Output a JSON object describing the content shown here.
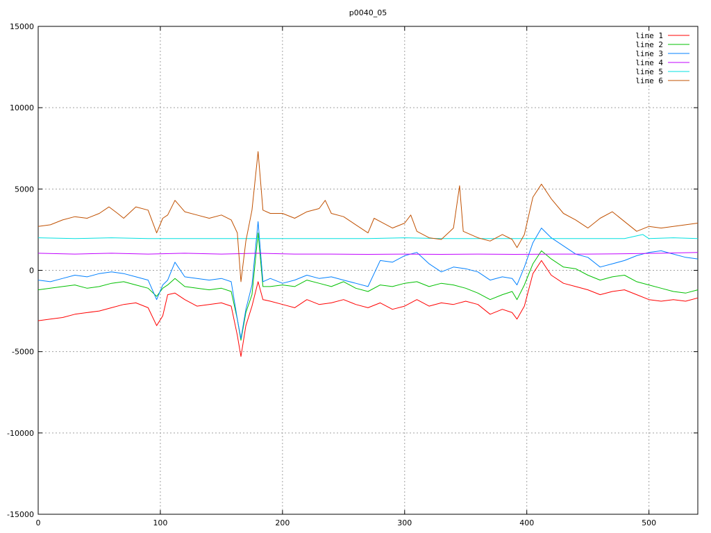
{
  "chart_data": {
    "type": "line",
    "title": "p0040_05",
    "xlabel": "",
    "ylabel": "",
    "xlim": [
      0,
      540
    ],
    "ylim": [
      -15000,
      15000
    ],
    "xticks": [
      0,
      100,
      200,
      300,
      400,
      500
    ],
    "yticks": [
      -15000,
      -10000,
      -5000,
      0,
      5000,
      10000,
      15000
    ],
    "grid": true,
    "legend_position": "top-right",
    "series": [
      {
        "name": "line 1",
        "color": "#ff0000",
        "points": [
          [
            0,
            -3100
          ],
          [
            10,
            -3000
          ],
          [
            20,
            -2900
          ],
          [
            30,
            -2700
          ],
          [
            40,
            -2600
          ],
          [
            50,
            -2500
          ],
          [
            60,
            -2300
          ],
          [
            70,
            -2100
          ],
          [
            80,
            -2000
          ],
          [
            90,
            -2300
          ],
          [
            97,
            -3400
          ],
          [
            102,
            -2800
          ],
          [
            106,
            -1500
          ],
          [
            112,
            -1400
          ],
          [
            120,
            -1800
          ],
          [
            130,
            -2200
          ],
          [
            140,
            -2100
          ],
          [
            150,
            -2000
          ],
          [
            158,
            -2200
          ],
          [
            163,
            -4000
          ],
          [
            166,
            -5300
          ],
          [
            170,
            -3400
          ],
          [
            175,
            -2200
          ],
          [
            180,
            -700
          ],
          [
            184,
            -1800
          ],
          [
            190,
            -1900
          ],
          [
            200,
            -2100
          ],
          [
            210,
            -2300
          ],
          [
            220,
            -1800
          ],
          [
            230,
            -2100
          ],
          [
            240,
            -2000
          ],
          [
            250,
            -1800
          ],
          [
            260,
            -2100
          ],
          [
            270,
            -2300
          ],
          [
            280,
            -2000
          ],
          [
            290,
            -2400
          ],
          [
            300,
            -2200
          ],
          [
            310,
            -1800
          ],
          [
            320,
            -2200
          ],
          [
            330,
            -2000
          ],
          [
            340,
            -2100
          ],
          [
            350,
            -1900
          ],
          [
            360,
            -2100
          ],
          [
            370,
            -2700
          ],
          [
            380,
            -2400
          ],
          [
            388,
            -2600
          ],
          [
            392,
            -3000
          ],
          [
            398,
            -2200
          ],
          [
            405,
            -200
          ],
          [
            412,
            600
          ],
          [
            420,
            -300
          ],
          [
            430,
            -800
          ],
          [
            440,
            -1000
          ],
          [
            450,
            -1200
          ],
          [
            460,
            -1500
          ],
          [
            470,
            -1300
          ],
          [
            480,
            -1200
          ],
          [
            490,
            -1500
          ],
          [
            500,
            -1800
          ],
          [
            510,
            -1900
          ],
          [
            520,
            -1800
          ],
          [
            530,
            -1900
          ],
          [
            540,
            -1700
          ]
        ]
      },
      {
        "name": "line 2",
        "color": "#00c000",
        "points": [
          [
            0,
            -1200
          ],
          [
            10,
            -1100
          ],
          [
            20,
            -1000
          ],
          [
            30,
            -900
          ],
          [
            40,
            -1100
          ],
          [
            50,
            -1000
          ],
          [
            60,
            -800
          ],
          [
            70,
            -700
          ],
          [
            80,
            -900
          ],
          [
            90,
            -1100
          ],
          [
            97,
            -1600
          ],
          [
            102,
            -1100
          ],
          [
            106,
            -900
          ],
          [
            112,
            -500
          ],
          [
            120,
            -1000
          ],
          [
            130,
            -1100
          ],
          [
            140,
            -1200
          ],
          [
            150,
            -1100
          ],
          [
            158,
            -1300
          ],
          [
            163,
            -3000
          ],
          [
            166,
            -4300
          ],
          [
            170,
            -2600
          ],
          [
            175,
            -1500
          ],
          [
            180,
            2300
          ],
          [
            184,
            -1000
          ],
          [
            190,
            -1000
          ],
          [
            200,
            -900
          ],
          [
            210,
            -1000
          ],
          [
            220,
            -600
          ],
          [
            230,
            -800
          ],
          [
            240,
            -1000
          ],
          [
            250,
            -700
          ],
          [
            260,
            -1100
          ],
          [
            270,
            -1300
          ],
          [
            280,
            -900
          ],
          [
            290,
            -1000
          ],
          [
            300,
            -800
          ],
          [
            310,
            -700
          ],
          [
            320,
            -1000
          ],
          [
            330,
            -800
          ],
          [
            340,
            -900
          ],
          [
            350,
            -1100
          ],
          [
            360,
            -1400
          ],
          [
            370,
            -1800
          ],
          [
            380,
            -1500
          ],
          [
            388,
            -1300
          ],
          [
            392,
            -1800
          ],
          [
            398,
            -900
          ],
          [
            405,
            400
          ],
          [
            412,
            1200
          ],
          [
            420,
            700
          ],
          [
            430,
            200
          ],
          [
            440,
            100
          ],
          [
            450,
            -300
          ],
          [
            460,
            -600
          ],
          [
            470,
            -400
          ],
          [
            480,
            -300
          ],
          [
            490,
            -700
          ],
          [
            500,
            -900
          ],
          [
            510,
            -1100
          ],
          [
            520,
            -1300
          ],
          [
            530,
            -1400
          ],
          [
            540,
            -1200
          ]
        ]
      },
      {
        "name": "line 3",
        "color": "#0080ff",
        "points": [
          [
            0,
            -600
          ],
          [
            10,
            -700
          ],
          [
            20,
            -500
          ],
          [
            30,
            -300
          ],
          [
            40,
            -400
          ],
          [
            50,
            -200
          ],
          [
            60,
            -100
          ],
          [
            70,
            -200
          ],
          [
            80,
            -400
          ],
          [
            90,
            -600
          ],
          [
            97,
            -1800
          ],
          [
            102,
            -900
          ],
          [
            106,
            -600
          ],
          [
            112,
            500
          ],
          [
            120,
            -400
          ],
          [
            130,
            -500
          ],
          [
            140,
            -600
          ],
          [
            150,
            -500
          ],
          [
            158,
            -700
          ],
          [
            163,
            -3000
          ],
          [
            166,
            -4200
          ],
          [
            170,
            -2400
          ],
          [
            175,
            -900
          ],
          [
            180,
            3000
          ],
          [
            184,
            -700
          ],
          [
            190,
            -500
          ],
          [
            200,
            -800
          ],
          [
            210,
            -600
          ],
          [
            220,
            -300
          ],
          [
            230,
            -500
          ],
          [
            240,
            -400
          ],
          [
            250,
            -600
          ],
          [
            260,
            -800
          ],
          [
            270,
            -1000
          ],
          [
            275,
            -200
          ],
          [
            280,
            600
          ],
          [
            290,
            500
          ],
          [
            300,
            900
          ],
          [
            310,
            1100
          ],
          [
            320,
            400
          ],
          [
            330,
            -100
          ],
          [
            340,
            200
          ],
          [
            350,
            100
          ],
          [
            360,
            -100
          ],
          [
            370,
            -600
          ],
          [
            380,
            -400
          ],
          [
            388,
            -500
          ],
          [
            392,
            -900
          ],
          [
            398,
            200
          ],
          [
            405,
            1700
          ],
          [
            412,
            2600
          ],
          [
            420,
            2000
          ],
          [
            430,
            1500
          ],
          [
            440,
            1000
          ],
          [
            450,
            800
          ],
          [
            460,
            200
          ],
          [
            470,
            400
          ],
          [
            480,
            600
          ],
          [
            490,
            900
          ],
          [
            500,
            1100
          ],
          [
            510,
            1200
          ],
          [
            520,
            1000
          ],
          [
            530,
            800
          ],
          [
            540,
            700
          ]
        ]
      },
      {
        "name": "line 4",
        "color": "#c000ff",
        "points": [
          [
            0,
            1050
          ],
          [
            30,
            1000
          ],
          [
            60,
            1050
          ],
          [
            90,
            1000
          ],
          [
            120,
            1050
          ],
          [
            150,
            1000
          ],
          [
            180,
            1050
          ],
          [
            210,
            1000
          ],
          [
            240,
            1000
          ],
          [
            270,
            980
          ],
          [
            300,
            1000
          ],
          [
            330,
            980
          ],
          [
            360,
            1000
          ],
          [
            390,
            980
          ],
          [
            420,
            1000
          ],
          [
            450,
            1000
          ],
          [
            480,
            1020
          ],
          [
            510,
            1050
          ],
          [
            540,
            1100
          ]
        ]
      },
      {
        "name": "line 5",
        "color": "#00e0e0",
        "points": [
          [
            0,
            2000
          ],
          [
            30,
            1950
          ],
          [
            60,
            2000
          ],
          [
            90,
            1950
          ],
          [
            120,
            1950
          ],
          [
            150,
            1950
          ],
          [
            180,
            1950
          ],
          [
            210,
            1950
          ],
          [
            240,
            1950
          ],
          [
            270,
            1950
          ],
          [
            300,
            2000
          ],
          [
            330,
            1950
          ],
          [
            360,
            1950
          ],
          [
            390,
            1950
          ],
          [
            420,
            1950
          ],
          [
            450,
            1950
          ],
          [
            480,
            1950
          ],
          [
            495,
            2200
          ],
          [
            500,
            1950
          ],
          [
            520,
            2000
          ],
          [
            540,
            1950
          ]
        ]
      },
      {
        "name": "line 6",
        "color": "#c05000",
        "points": [
          [
            0,
            2700
          ],
          [
            10,
            2800
          ],
          [
            20,
            3100
          ],
          [
            30,
            3300
          ],
          [
            40,
            3200
          ],
          [
            50,
            3500
          ],
          [
            58,
            3900
          ],
          [
            65,
            3500
          ],
          [
            70,
            3200
          ],
          [
            80,
            3900
          ],
          [
            90,
            3700
          ],
          [
            97,
            2300
          ],
          [
            102,
            3200
          ],
          [
            106,
            3400
          ],
          [
            112,
            4300
          ],
          [
            120,
            3600
          ],
          [
            130,
            3400
          ],
          [
            140,
            3200
          ],
          [
            150,
            3400
          ],
          [
            158,
            3100
          ],
          [
            163,
            2300
          ],
          [
            166,
            -700
          ],
          [
            170,
            1800
          ],
          [
            175,
            3700
          ],
          [
            180,
            7300
          ],
          [
            184,
            3700
          ],
          [
            190,
            3500
          ],
          [
            200,
            3500
          ],
          [
            210,
            3200
          ],
          [
            220,
            3600
          ],
          [
            230,
            3800
          ],
          [
            235,
            4300
          ],
          [
            240,
            3500
          ],
          [
            250,
            3300
          ],
          [
            260,
            2800
          ],
          [
            270,
            2300
          ],
          [
            275,
            3200
          ],
          [
            280,
            3000
          ],
          [
            290,
            2600
          ],
          [
            300,
            2900
          ],
          [
            305,
            3400
          ],
          [
            310,
            2400
          ],
          [
            320,
            2000
          ],
          [
            330,
            1900
          ],
          [
            340,
            2600
          ],
          [
            345,
            5200
          ],
          [
            348,
            2400
          ],
          [
            360,
            2000
          ],
          [
            370,
            1800
          ],
          [
            380,
            2200
          ],
          [
            388,
            1900
          ],
          [
            392,
            1400
          ],
          [
            398,
            2200
          ],
          [
            405,
            4500
          ],
          [
            412,
            5300
          ],
          [
            420,
            4400
          ],
          [
            430,
            3500
          ],
          [
            440,
            3100
          ],
          [
            450,
            2600
          ],
          [
            460,
            3200
          ],
          [
            470,
            3600
          ],
          [
            480,
            3000
          ],
          [
            490,
            2400
          ],
          [
            500,
            2700
          ],
          [
            510,
            2600
          ],
          [
            520,
            2700
          ],
          [
            530,
            2800
          ],
          [
            540,
            2900
          ]
        ]
      }
    ]
  }
}
